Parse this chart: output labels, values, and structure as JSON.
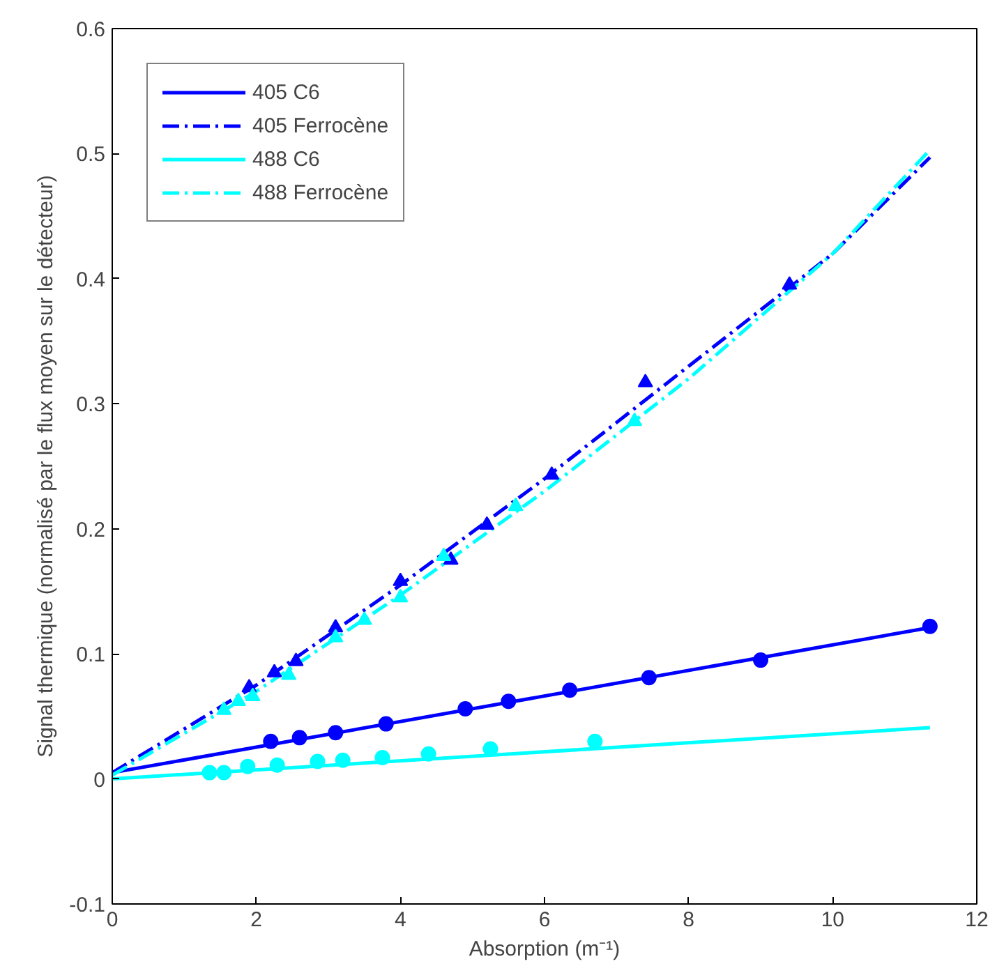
{
  "chart_data": {
    "type": "line",
    "xlabel": "Absorption (m⁻¹)",
    "ylabel": "Signal thermique (normalisé par le flux moyen sur le détecteur)",
    "xlim": [
      0,
      12
    ],
    "ylim": [
      -0.1,
      0.6
    ],
    "xticks": [
      0,
      2,
      4,
      6,
      8,
      10,
      12
    ],
    "yticks": [
      -0.1,
      0,
      0.1,
      0.2,
      0.3,
      0.4,
      0.5,
      0.6
    ],
    "grid": false,
    "legend": "top left",
    "series": [
      {
        "name": "405 C6",
        "color": "#0000ff",
        "line_style": "solid",
        "marker": "none",
        "x": [
          0,
          11.35
        ],
        "values": [
          0.005,
          0.121
        ]
      },
      {
        "name": "405 Ferrocène",
        "color": "#0000ff",
        "line_style": "dashdot",
        "marker": "none",
        "x": [
          0,
          2,
          4,
          6,
          8,
          10,
          11.35
        ],
        "values": [
          0.005,
          0.075,
          0.155,
          0.24,
          0.33,
          0.42,
          0.497
        ]
      },
      {
        "name": "488 C6",
        "color": "#00ffff",
        "line_style": "solid",
        "marker": "none",
        "x": [
          0,
          11.35
        ],
        "values": [
          0,
          0.041
        ]
      },
      {
        "name": "488 Ferrocène",
        "color": "#00ffff",
        "line_style": "dashdot",
        "marker": "none",
        "x": [
          0,
          2,
          4,
          6,
          8,
          10,
          11.35
        ],
        "values": [
          0.003,
          0.07,
          0.147,
          0.23,
          0.32,
          0.42,
          0.503
        ]
      },
      {
        "type": "scatter",
        "color": "#0000ff",
        "marker": "circle",
        "x": [
          2.2,
          2.6,
          3.1,
          3.8,
          4.9,
          5.5,
          6.35,
          7.45,
          9.0,
          11.35
        ],
        "values": [
          0.03,
          0.033,
          0.037,
          0.044,
          0.056,
          0.062,
          0.071,
          0.081,
          0.095,
          0.122
        ]
      },
      {
        "type": "scatter",
        "color": "#00ffff",
        "marker": "circle",
        "x": [
          1.35,
          1.55,
          1.88,
          2.29,
          2.85,
          3.2,
          3.75,
          4.39,
          5.25,
          6.7
        ],
        "values": [
          0.005,
          0.005,
          0.01,
          0.011,
          0.014,
          0.015,
          0.017,
          0.02,
          0.024,
          0.03
        ]
      },
      {
        "type": "scatter",
        "color": "#0000ff",
        "marker": "triangle",
        "x": [
          1.9,
          2.25,
          2.55,
          3.1,
          4.0,
          4.7,
          5.2,
          6.1,
          7.4,
          9.4
        ],
        "values": [
          0.073,
          0.085,
          0.094,
          0.121,
          0.158,
          0.175,
          0.203,
          0.243,
          0.317,
          0.395
        ]
      },
      {
        "type": "scatter",
        "color": "#00ffff",
        "marker": "triangle",
        "x": [
          1.55,
          1.75,
          1.95,
          2.45,
          3.1,
          3.5,
          4.0,
          4.6,
          5.6,
          7.25
        ],
        "values": [
          0.055,
          0.062,
          0.066,
          0.083,
          0.113,
          0.127,
          0.145,
          0.178,
          0.218,
          0.286
        ]
      }
    ]
  }
}
